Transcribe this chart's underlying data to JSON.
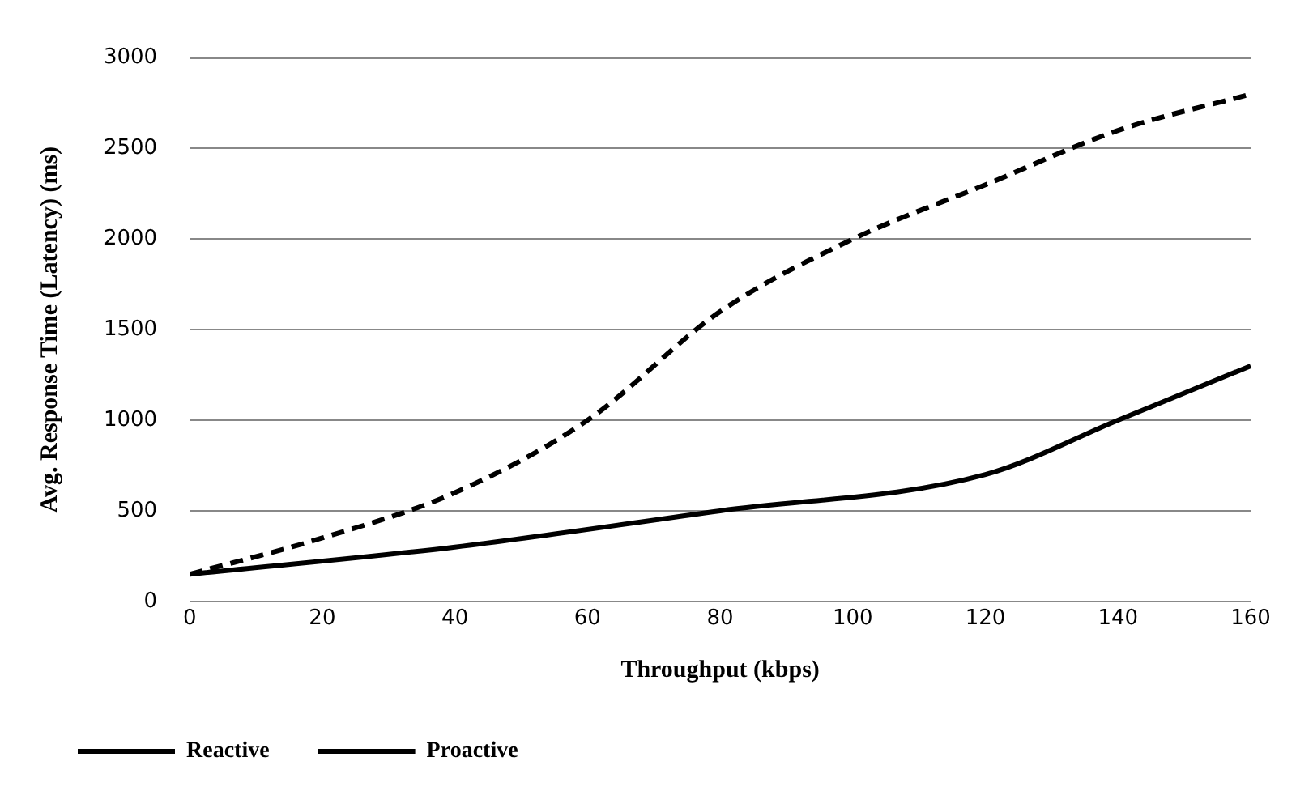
{
  "chart_data": {
    "type": "line",
    "xlabel": "Throughput (kbps)",
    "ylabel": "Avg. Response Time (Latency) (ms)",
    "x": [
      0,
      20,
      40,
      60,
      80,
      100,
      120,
      140,
      160
    ],
    "series": [
      {
        "name": "Reactive",
        "color": "#000000",
        "line_style": "dashed",
        "values": [
          150,
          350,
          600,
          1000,
          1600,
          2000,
          2300,
          2600,
          2800
        ]
      },
      {
        "name": "Proactive",
        "color": "#000000",
        "line_style": "solid",
        "x": [
          0,
          40,
          80,
          120,
          140,
          160
        ],
        "values": [
          150,
          300,
          500,
          700,
          1000,
          1300
        ]
      }
    ],
    "xlim": [
      0,
      160
    ],
    "xticks": [
      0,
      20,
      40,
      60,
      80,
      100,
      120,
      140,
      160
    ],
    "ylim": [
      0,
      3000
    ],
    "yticks": [
      0,
      500,
      1000,
      1500,
      2000,
      2500,
      3000
    ],
    "grid": "y",
    "legend": "bottom left",
    "marker": "none"
  }
}
